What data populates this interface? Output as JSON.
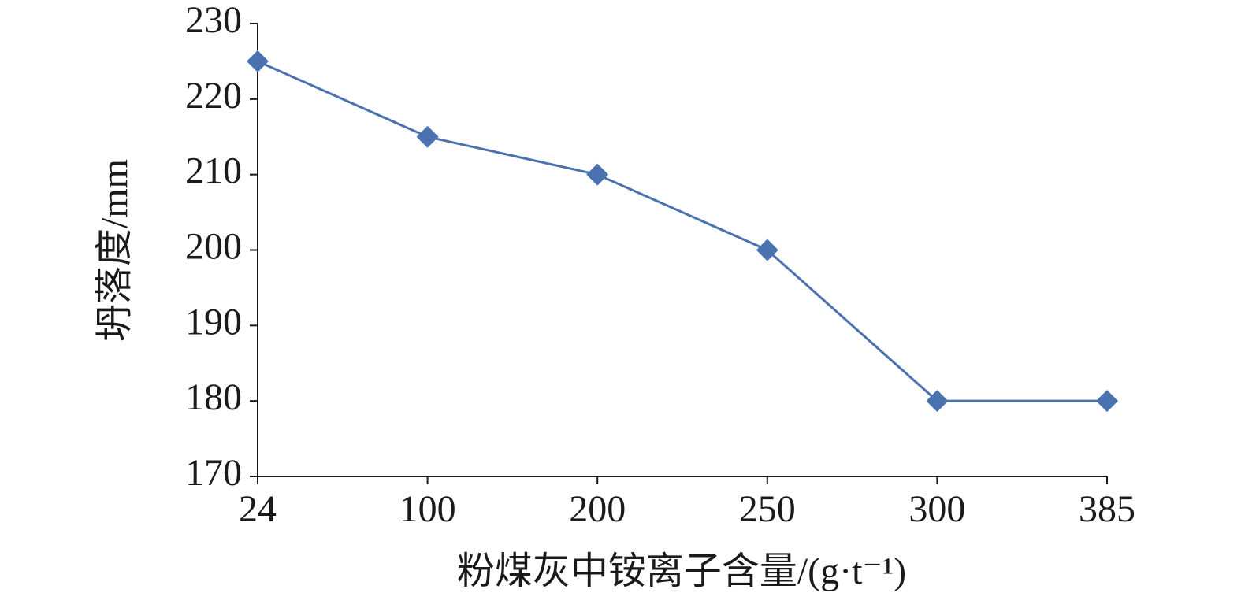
{
  "chart_data": {
    "type": "line",
    "x_label": "粉煤灰中铵离子含量/(g·t⁻¹)",
    "y_label": "坍落度/mm",
    "categories": [
      "24",
      "100",
      "200",
      "250",
      "300",
      "385"
    ],
    "series": [
      {
        "color": "#4a72b0",
        "values": [
          225,
          215,
          210,
          200,
          180,
          180
        ]
      }
    ],
    "ylim": [
      170,
      230
    ],
    "yticks": [
      170,
      180,
      190,
      200,
      210,
      220,
      230
    ]
  }
}
